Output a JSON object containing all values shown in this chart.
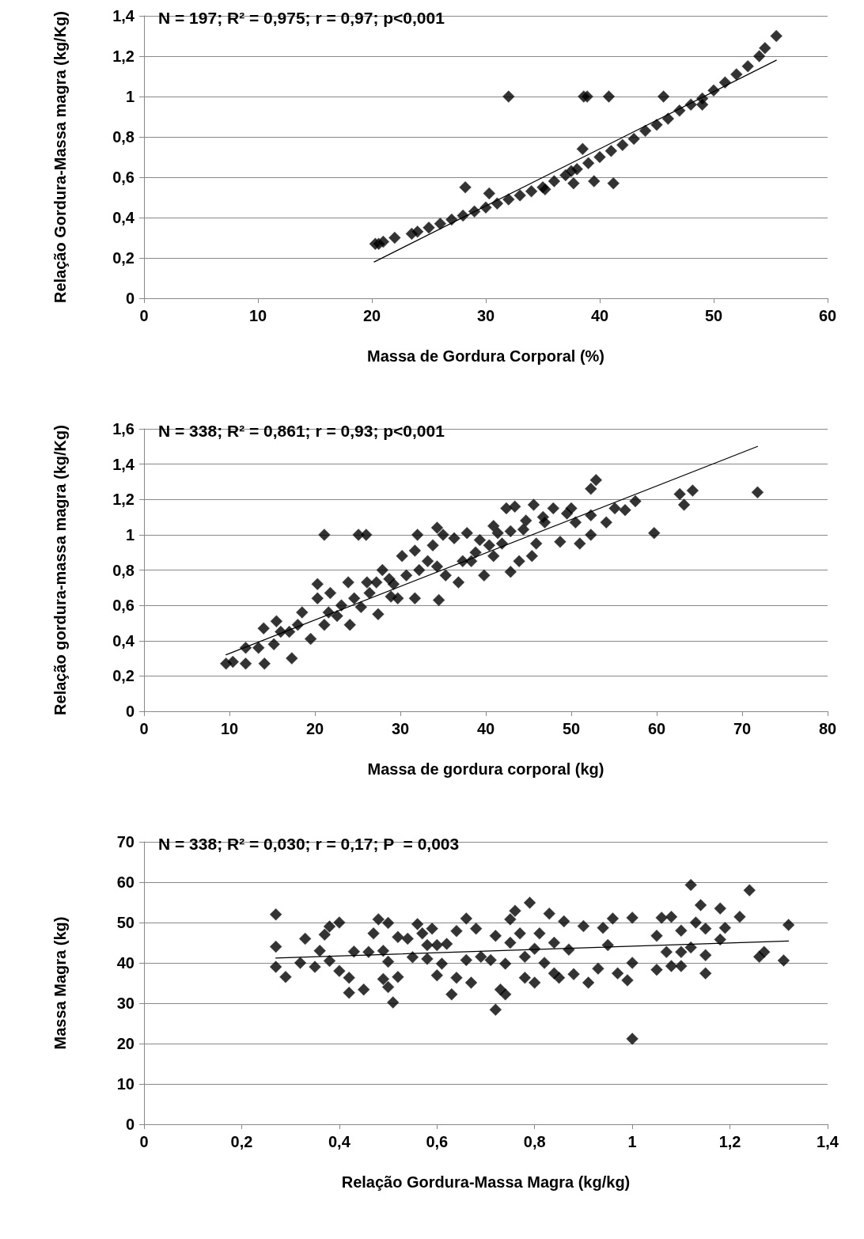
{
  "chart_data": [
    {
      "type": "scatter",
      "xlabel": "Massa de Gordura Corporal (%)",
      "ylabel": "Relação Gordura-Massa magra (kg/Kg)",
      "annotations": [
        "N = 197; R² = 0,975; r = 0,97; p<0,001"
      ],
      "xlim": [
        0,
        60
      ],
      "xticks": [
        0,
        10,
        20,
        30,
        40,
        50,
        60
      ],
      "ylim": [
        0,
        1.4
      ],
      "yticks": [
        0,
        {
          "value": 0.2,
          "label": "0,2"
        },
        {
          "value": 0.4,
          "label": "0,4"
        },
        {
          "value": 0.6,
          "label": "0,6"
        },
        {
          "value": 0.8,
          "label": "0,8"
        },
        1,
        {
          "value": 1.2,
          "label": "1,2"
        },
        {
          "value": 1.4,
          "label": "1,4"
        }
      ],
      "grid": "y",
      "marker": "diamond",
      "series": [
        {
          "color": "#000000",
          "x": [
            20.3,
            20.6,
            21,
            22,
            23.5,
            24,
            25,
            26,
            27,
            28,
            28.2,
            29,
            30,
            30.3,
            31,
            32,
            32,
            33,
            34,
            35,
            35.2,
            36,
            37,
            37.5,
            37.7,
            38,
            38.5,
            38.6,
            38.9,
            39,
            39.5,
            40,
            40.8,
            41,
            41.2,
            42,
            43,
            44,
            45,
            45.6,
            46,
            47,
            48,
            49,
            49,
            50,
            51,
            52,
            53,
            54,
            54.5,
            55.5
          ],
          "values": [
            0.27,
            0.27,
            0.28,
            0.3,
            0.32,
            0.33,
            0.35,
            0.37,
            0.39,
            0.41,
            0.55,
            0.43,
            0.45,
            0.52,
            0.47,
            0.49,
            1,
            0.51,
            0.53,
            0.55,
            0.54,
            0.58,
            0.61,
            0.63,
            0.57,
            0.64,
            0.74,
            1,
            1,
            0.67,
            0.58,
            0.7,
            1,
            0.73,
            0.57,
            0.76,
            0.79,
            0.83,
            0.86,
            1,
            0.89,
            0.93,
            0.96,
            0.99,
            0.96,
            1.03,
            1.07,
            1.11,
            1.15,
            1.2,
            1.24,
            1.3
          ]
        },
        {
          "type": "line",
          "color": "#000000",
          "marker": "none",
          "x": [
            20.2,
            55.5
          ],
          "values": [
            0.18,
            1.18
          ]
        }
      ]
    },
    {
      "type": "scatter",
      "xlabel": "Massa de gordura corporal (kg)",
      "ylabel": "Relação gordura-massa magra (kg/Kg)",
      "annotations": [
        "N = 338; R² = 0,861; r = 0,93; p<0,001"
      ],
      "xlim": [
        0,
        80
      ],
      "xticks": [
        0,
        10,
        20,
        30,
        40,
        50,
        60,
        70,
        80
      ],
      "ylim": [
        0,
        1.6
      ],
      "yticks": [
        0,
        {
          "value": 0.2,
          "label": "0,2"
        },
        {
          "value": 0.4,
          "label": "0,4"
        },
        {
          "value": 0.6,
          "label": "0,6"
        },
        {
          "value": 0.8,
          "label": "0,8"
        },
        1,
        {
          "value": 1.2,
          "label": "1,2"
        },
        {
          "value": 1.4,
          "label": "1,4"
        },
        {
          "value": 1.6,
          "label": "1,6"
        }
      ],
      "grid": "y",
      "marker": "diamond",
      "series": [
        {
          "color": "#000000",
          "x": [
            9.6,
            10.4,
            11.9,
            11.9,
            13.4,
            14.1,
            14,
            15.5,
            15.2,
            17.3,
            17,
            18.5,
            19.5,
            20.3,
            20.3,
            21.1,
            21.1,
            21.8,
            22.6,
            23.9,
            24.1,
            25.1,
            26,
            25.4,
            26.1,
            27.4,
            27.9,
            28.9,
            30.2,
            29.7,
            31.7,
            32,
            31.7,
            33.8,
            34.3,
            34.5,
            35,
            35.3,
            36.3,
            36.8,
            37.8,
            38.3,
            39.3,
            39.8,
            40.9,
            40.9,
            42.4,
            41.9,
            42.9,
            43.4,
            43.9,
            44.7,
            45.4,
            45.6,
            45.9,
            46.7,
            47.9,
            48.7,
            49.5,
            50,
            50.5,
            51,
            52.3,
            52.3,
            52.3,
            52.9,
            54.1,
            55.1,
            56.3,
            57.5,
            59.7,
            62.7,
            63.2,
            64.2,
            71.8,
            16,
            18,
            21.6,
            23.1,
            24.6,
            26.4,
            27.2,
            28.7,
            29.2,
            30.7,
            32.2,
            33.2,
            34.3,
            37.3,
            38.8,
            40.4,
            41.4,
            42.9,
            44.4,
            46.9
          ],
          "values": [
            0.27,
            0.28,
            0.36,
            0.27,
            0.36,
            0.27,
            0.47,
            0.51,
            0.38,
            0.3,
            0.45,
            0.56,
            0.41,
            0.72,
            0.64,
            1,
            0.49,
            0.67,
            0.54,
            0.73,
            0.49,
            1,
            1,
            0.59,
            0.73,
            0.55,
            0.8,
            0.65,
            0.88,
            0.64,
            0.64,
            1,
            0.91,
            0.94,
            1.04,
            0.63,
            1,
            0.77,
            0.98,
            0.73,
            1.01,
            0.85,
            0.97,
            0.77,
            1.05,
            0.88,
            1.15,
            0.95,
            0.79,
            1.16,
            0.85,
            1.08,
            0.88,
            1.17,
            0.95,
            1.1,
            1.15,
            0.96,
            1.12,
            1.15,
            1.07,
            0.95,
            1,
            1.11,
            1.26,
            1.31,
            1.07,
            1.15,
            1.14,
            1.19,
            1.01,
            1.23,
            1.17,
            1.25,
            1.24,
            0.45,
            0.49,
            0.56,
            0.6,
            0.64,
            0.67,
            0.73,
            0.75,
            0.72,
            0.77,
            0.8,
            0.85,
            0.82,
            0.85,
            0.9,
            0.94,
            1.01,
            1.02,
            1.03,
            1.07
          ]
        },
        {
          "type": "line",
          "color": "#000000",
          "marker": "none",
          "x": [
            9.6,
            71.8
          ],
          "values": [
            0.32,
            1.5
          ]
        }
      ]
    },
    {
      "type": "scatter",
      "xlabel": "Relação Gordura-Massa Magra (kg/kg)",
      "ylabel": "Massa Magra (kg)",
      "annotations": [
        "N = 338; R² = 0,030; r = 0,17; P  = 0,003"
      ],
      "xlim": [
        0,
        1.4
      ],
      "xticks": [
        0,
        {
          "value": 0.2,
          "label": "0,2"
        },
        {
          "value": 0.4,
          "label": "0,4"
        },
        {
          "value": 0.6,
          "label": "0,6"
        },
        {
          "value": 0.8,
          "label": "0,8"
        },
        1,
        {
          "value": 1.2,
          "label": "1,2"
        },
        {
          "value": 1.4,
          "label": "1,4"
        }
      ],
      "ylim": [
        0,
        70
      ],
      "yticks": [
        0,
        10,
        20,
        30,
        40,
        50,
        60,
        70
      ],
      "grid": "y",
      "marker": "diamond",
      "series": [
        {
          "color": "#000000",
          "x": [
            0.27,
            0.27,
            0.27,
            0.29,
            0.32,
            0.33,
            0.35,
            0.36,
            0.37,
            0.38,
            0.4,
            0.38,
            0.4,
            0.42,
            0.42,
            0.45,
            0.43,
            0.46,
            0.48,
            0.47,
            0.5,
            0.49,
            0.5,
            0.49,
            0.5,
            0.51,
            0.52,
            0.52,
            0.54,
            0.55,
            0.56,
            0.57,
            0.58,
            0.58,
            0.59,
            0.6,
            0.6,
            0.61,
            0.62,
            0.63,
            0.64,
            0.64,
            0.66,
            0.66,
            0.67,
            0.68,
            0.69,
            0.71,
            0.72,
            0.72,
            0.73,
            0.74,
            0.74,
            0.75,
            0.76,
            0.75,
            0.77,
            0.78,
            0.79,
            0.78,
            0.8,
            0.8,
            0.81,
            0.82,
            0.83,
            0.84,
            0.84,
            0.85,
            0.86,
            0.87,
            0.88,
            0.9,
            0.91,
            0.93,
            0.94,
            0.95,
            0.96,
            0.97,
            0.99,
            1,
            1,
            1,
            1.05,
            1.05,
            1.06,
            1.07,
            1.08,
            1.08,
            1.1,
            1.1,
            1.1,
            1.12,
            1.12,
            1.13,
            1.14,
            1.15,
            1.15,
            1.15,
            1.18,
            1.18,
            1.19,
            1.22,
            1.24,
            1.26,
            1.27,
            1.31,
            1.32
          ],
          "values": [
            52,
            44,
            39,
            36.5,
            40,
            46,
            39,
            43,
            47,
            49,
            50,
            40.5,
            38,
            36.3,
            32.6,
            33.4,
            42.8,
            42.7,
            50.8,
            47.3,
            49.9,
            43,
            40.3,
            36,
            34,
            30.2,
            46.4,
            36.5,
            46,
            41.4,
            49.6,
            47.3,
            44.4,
            41,
            48.5,
            44.4,
            36.9,
            39.8,
            44.7,
            32.2,
            47.9,
            36.3,
            51,
            40.7,
            35.1,
            48.5,
            41.5,
            40.7,
            28.4,
            46.7,
            33.4,
            32.2,
            39.8,
            50.8,
            52.9,
            45,
            47.3,
            41.5,
            54.9,
            36.3,
            35.1,
            43.5,
            47.3,
            40,
            52.2,
            45,
            37.4,
            36.3,
            50.3,
            43.3,
            37.2,
            49.1,
            35.1,
            38.6,
            48.7,
            44.4,
            51,
            37.4,
            35.7,
            51.2,
            40,
            21.2,
            38.3,
            46.7,
            51.2,
            42.7,
            51.4,
            39.2,
            48,
            42.7,
            39.2,
            43.8,
            59.3,
            50,
            54.3,
            48.5,
            37.4,
            41.9,
            53.5,
            45.8,
            48.7,
            51.4,
            58,
            41.5,
            42.7,
            40.6,
            49.4
          ]
        },
        {
          "type": "line",
          "color": "#000000",
          "marker": "none",
          "x": [
            0.27,
            1.32
          ],
          "values": [
            41.2,
            45.4
          ]
        }
      ]
    }
  ]
}
